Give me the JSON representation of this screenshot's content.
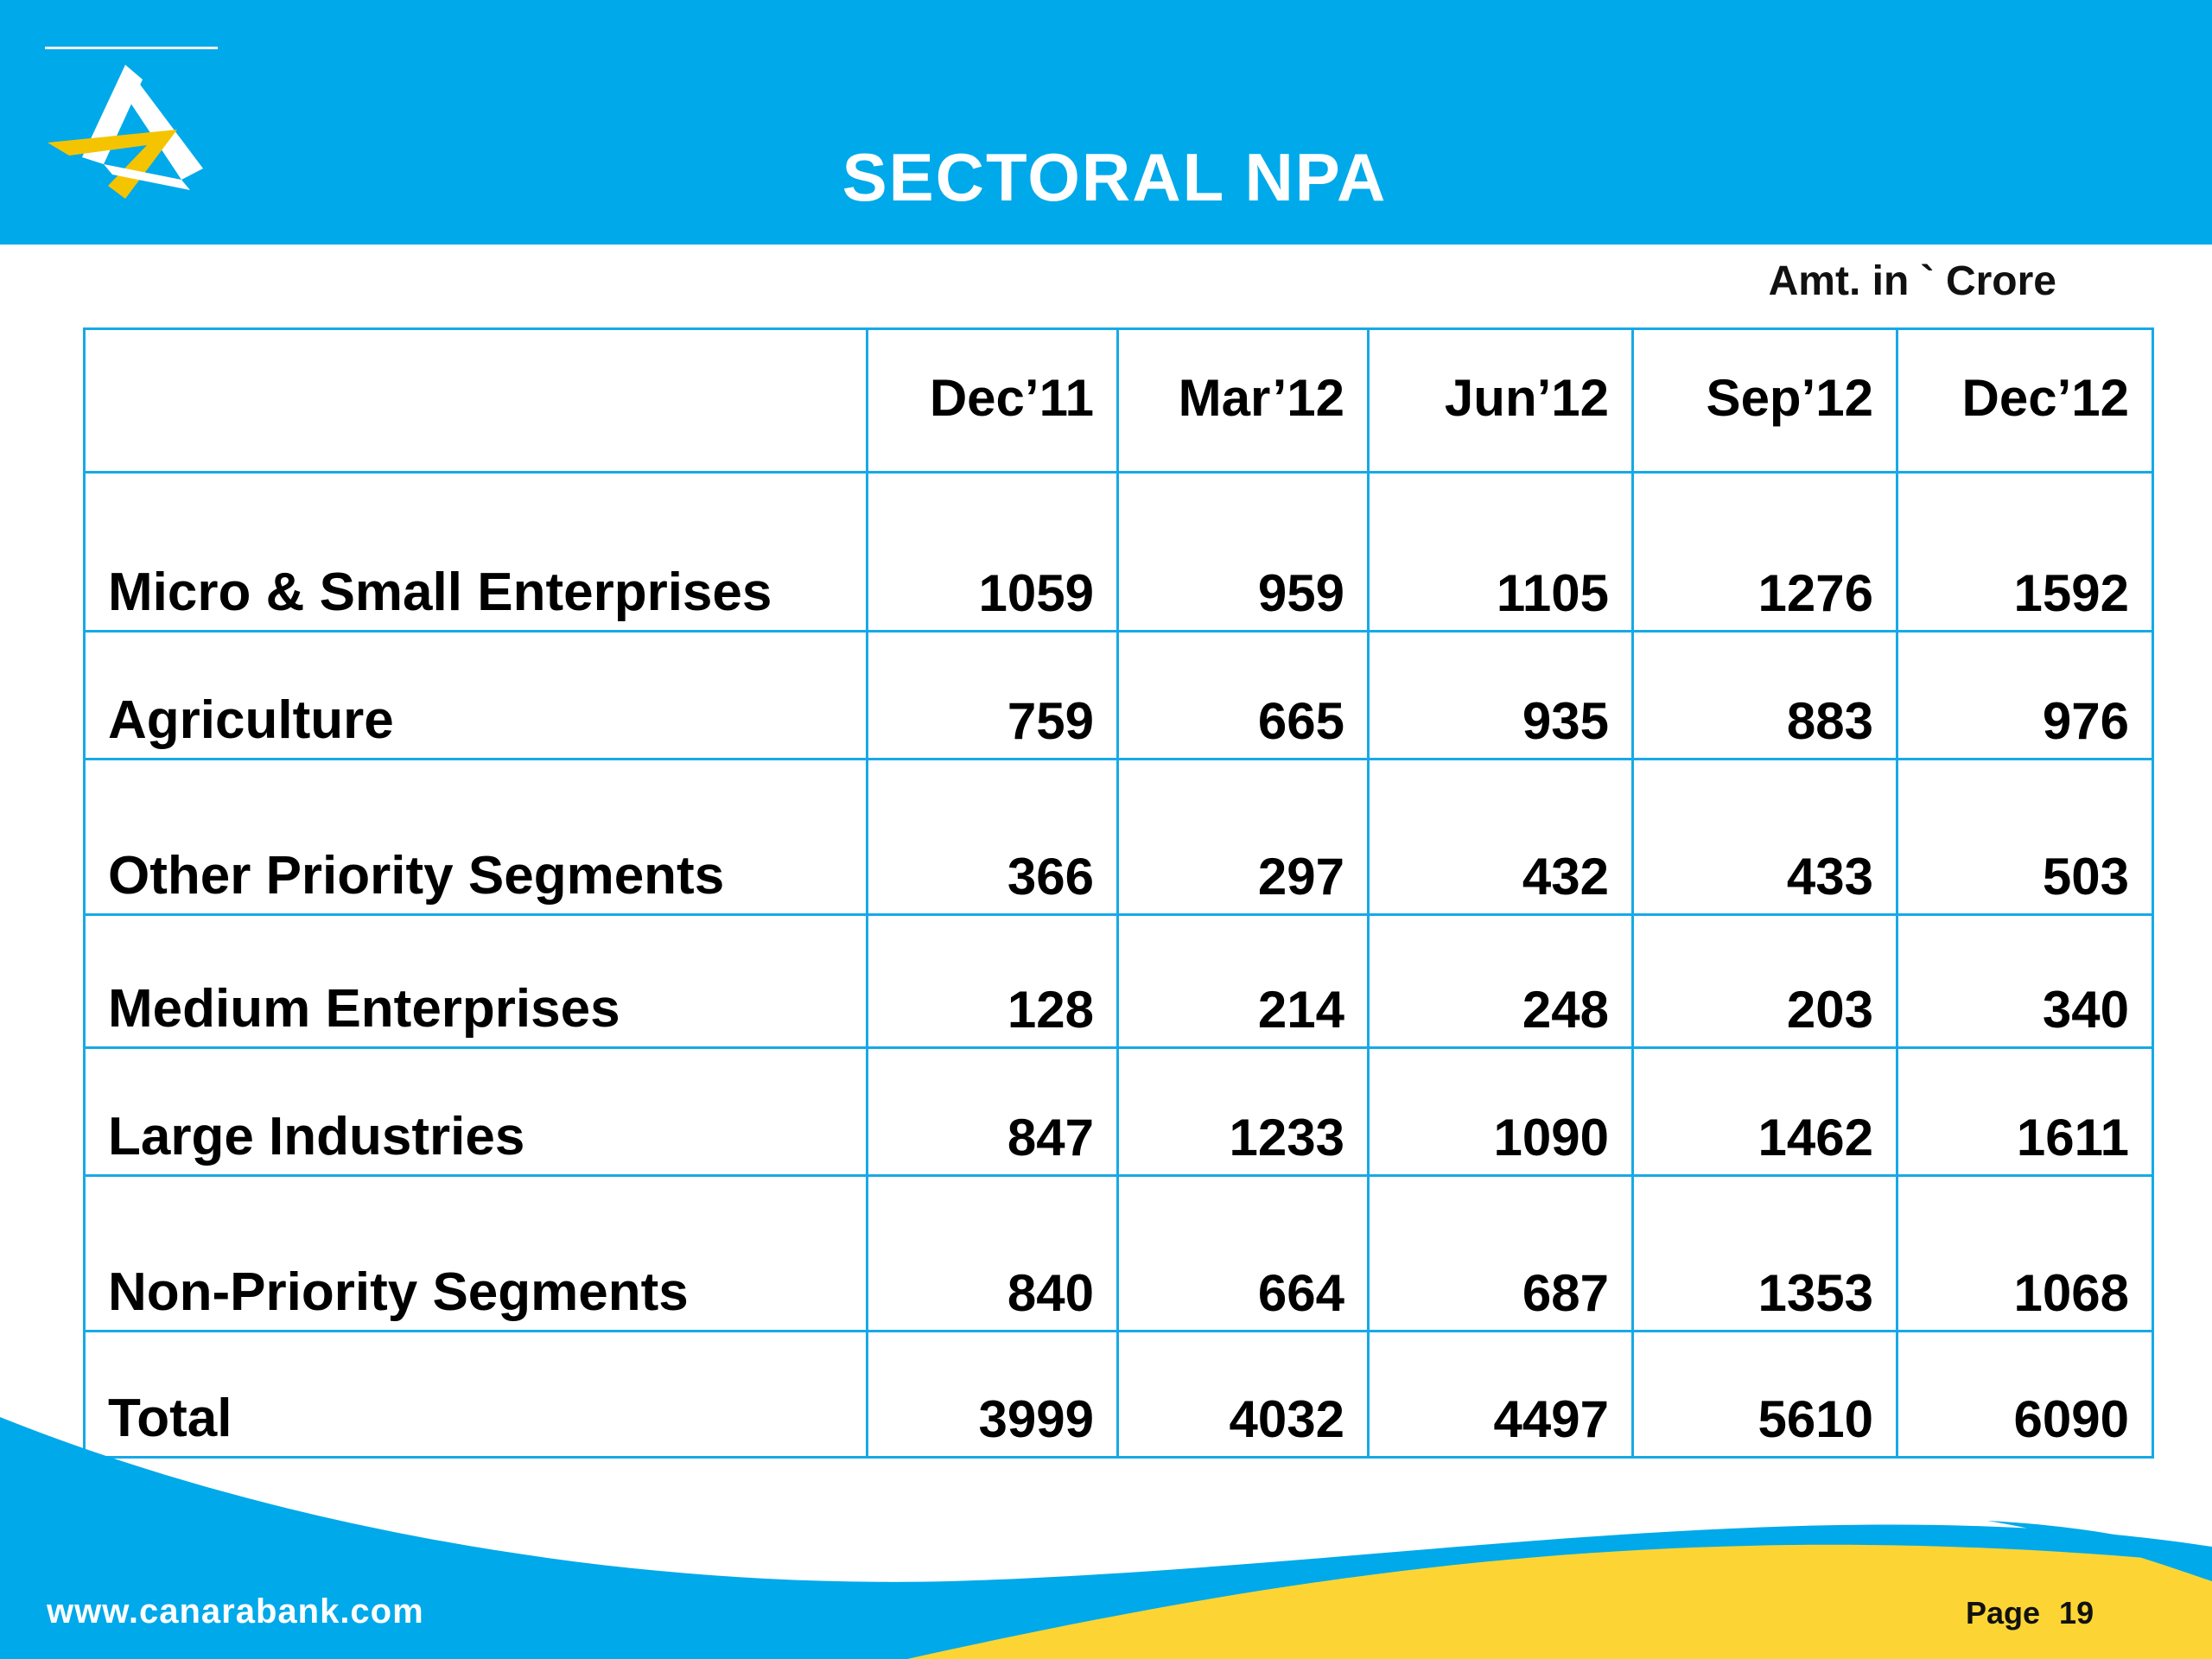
{
  "slide": {
    "title": "SECTORAL NPA",
    "units_note": "Amt. in ` Crore",
    "logo_icon": "canara-bank-logo-icon"
  },
  "table": {
    "columns": [
      "",
      "Dec’11",
      "Mar’12",
      "Jun’12",
      "Sep’12",
      "Dec’12"
    ],
    "rows": [
      {
        "label": "Micro & Small Enterprises",
        "values": [
          "1059",
          "959",
          "1105",
          "1276",
          "1592"
        ]
      },
      {
        "label": "Agriculture",
        "values": [
          "759",
          "665",
          "935",
          "883",
          "976"
        ]
      },
      {
        "label": "Other Priority Segments",
        "values": [
          "366",
          "297",
          "432",
          "433",
          "503"
        ]
      },
      {
        "label": "Medium Enterprises",
        "values": [
          "128",
          "214",
          "248",
          "203",
          "340"
        ]
      },
      {
        "label": "Large Industries",
        "values": [
          "847",
          "1233",
          "1090",
          "1462",
          "1611"
        ]
      },
      {
        "label": "Non-Priority Segments",
        "values": [
          "840",
          "664",
          "687",
          "1353",
          "1068"
        ]
      },
      {
        "label": "Total",
        "values": [
          "3999",
          "4032",
          "4497",
          "5610",
          "6090"
        ]
      }
    ]
  },
  "footer": {
    "url": "www.canarabank.com",
    "page_label": "Page",
    "page_number": "19"
  },
  "colors": {
    "header": "#00a9ea",
    "table_border": "#17a9e6",
    "wave_blue": "#00a9ea",
    "wave_yellow": "#fcd535"
  }
}
